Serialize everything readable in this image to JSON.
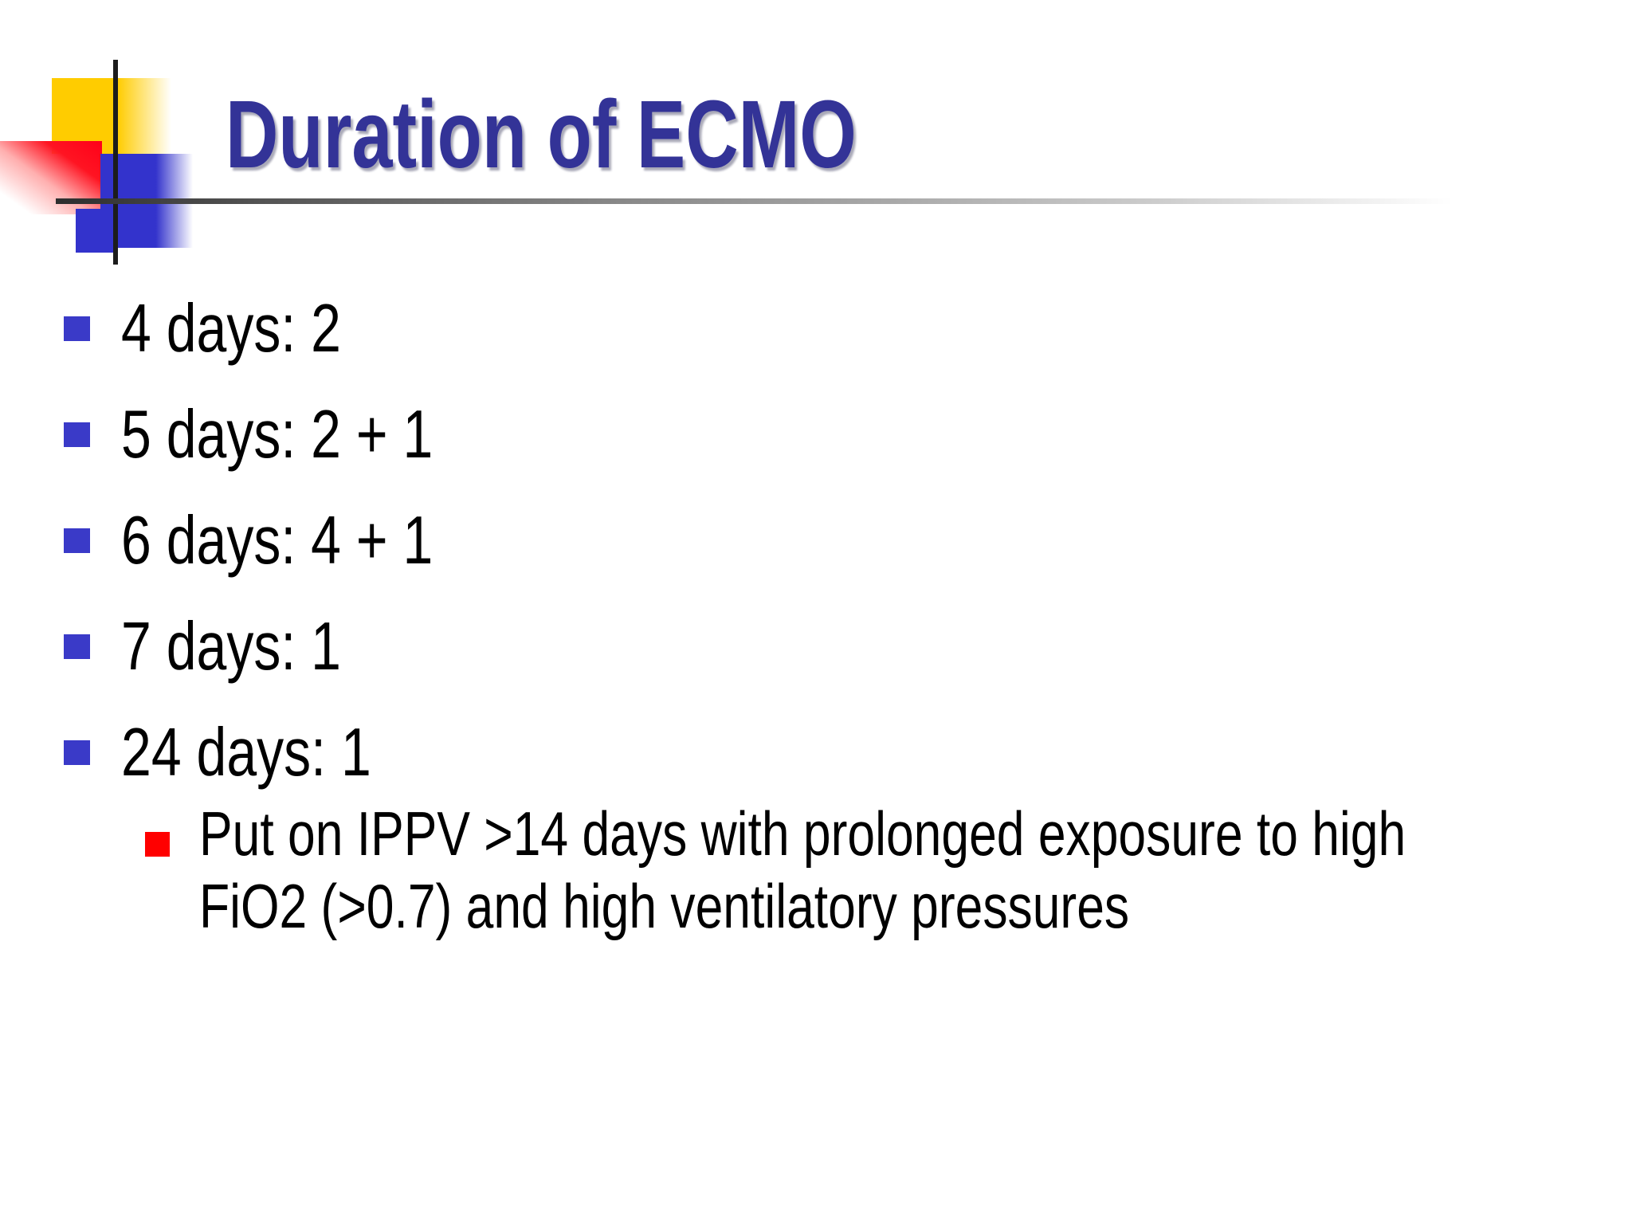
{
  "slide": {
    "title": "Duration of ECMO",
    "bullets": [
      {
        "label": "4 days: 2",
        "sub_bullets": []
      },
      {
        "label": "5 days: 2 + 1",
        "sub_bullets": []
      },
      {
        "label": "6 days: 4 + 1",
        "sub_bullets": []
      },
      {
        "label": "7 days: 1",
        "sub_bullets": []
      },
      {
        "label": "24 days: 1",
        "sub_bullets": [
          "Put on IPPV >14 days with prolonged exposure to high FiO2 (>0.7) and high ventilatory pressures"
        ]
      }
    ],
    "colors": {
      "title_text": "#333397",
      "body_text": "#000000",
      "bullet_marker": "#3A3AC8",
      "sub_bullet_marker": "#FF0000",
      "accent_yellow": "#FFCC00",
      "accent_red": "#FF0019",
      "accent_blue": "#3333CC",
      "cross_lines": "#1C1C1C"
    }
  }
}
